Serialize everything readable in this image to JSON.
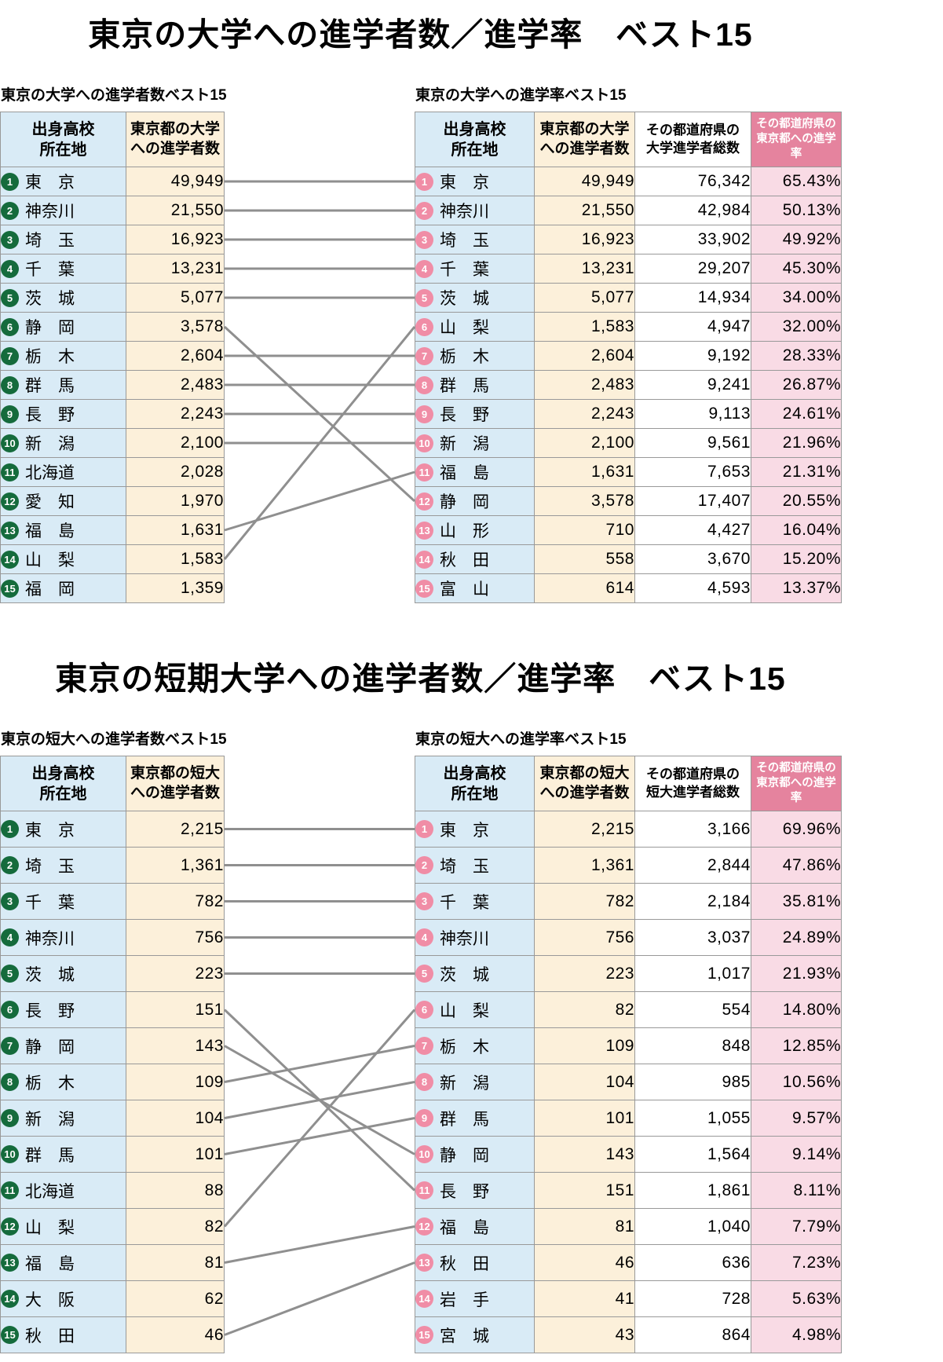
{
  "colors": {
    "pref_bg": "#d9ebf6",
    "count_bg": "#fcf0da",
    "total_bg": "#ffffff",
    "rate_bg": "#f9dbe5",
    "rate_header_bg": "#e5839e",
    "rate_header_text": "#ffffff",
    "badge_green": "#156b3c",
    "badge_pink": "#f08da6",
    "border": "#999999",
    "link_line": "#8f8f8f"
  },
  "chart_data": [
    {
      "type": "table",
      "section_title": "東京の大学への進学者数／進学率　ベスト15",
      "rank_links": [
        [
          1,
          1
        ],
        [
          2,
          2
        ],
        [
          3,
          3
        ],
        [
          4,
          4
        ],
        [
          5,
          5
        ],
        [
          6,
          12
        ],
        [
          7,
          7
        ],
        [
          8,
          8
        ],
        [
          9,
          9
        ],
        [
          10,
          10
        ],
        [
          13,
          11
        ],
        [
          14,
          6
        ]
      ],
      "left_table": {
        "title": "東京の大学への進学者数ベスト15",
        "columns": [
          "出身高校\n所在地",
          "東京都の大学\nへの進学者数"
        ],
        "rows": [
          {
            "rank": "1",
            "pref": "東　京",
            "count": "49,949"
          },
          {
            "rank": "2",
            "pref": "神奈川",
            "count": "21,550"
          },
          {
            "rank": "3",
            "pref": "埼　玉",
            "count": "16,923"
          },
          {
            "rank": "4",
            "pref": "千　葉",
            "count": "13,231"
          },
          {
            "rank": "5",
            "pref": "茨　城",
            "count": "5,077"
          },
          {
            "rank": "6",
            "pref": "静　岡",
            "count": "3,578"
          },
          {
            "rank": "7",
            "pref": "栃　木",
            "count": "2,604"
          },
          {
            "rank": "8",
            "pref": "群　馬",
            "count": "2,483"
          },
          {
            "rank": "9",
            "pref": "長　野",
            "count": "2,243"
          },
          {
            "rank": "10",
            "pref": "新　潟",
            "count": "2,100"
          },
          {
            "rank": "11",
            "pref": "北海道",
            "count": "2,028"
          },
          {
            "rank": "12",
            "pref": "愛　知",
            "count": "1,970"
          },
          {
            "rank": "13",
            "pref": "福　島",
            "count": "1,631"
          },
          {
            "rank": "14",
            "pref": "山　梨",
            "count": "1,583"
          },
          {
            "rank": "15",
            "pref": "福　岡",
            "count": "1,359"
          }
        ]
      },
      "right_table": {
        "title": "東京の大学への進学率ベスト15",
        "columns": [
          "出身高校\n所在地",
          "東京都の大学\nへの進学者数",
          "その都道府県の\n大学進学者総数",
          "その都道府県の\n東京都への進学率"
        ],
        "rows": [
          {
            "rank": "1",
            "pref": "東　京",
            "count": "49,949",
            "total": "76,342",
            "rate": "65.43%"
          },
          {
            "rank": "2",
            "pref": "神奈川",
            "count": "21,550",
            "total": "42,984",
            "rate": "50.13%"
          },
          {
            "rank": "3",
            "pref": "埼　玉",
            "count": "16,923",
            "total": "33,902",
            "rate": "49.92%"
          },
          {
            "rank": "4",
            "pref": "千　葉",
            "count": "13,231",
            "total": "29,207",
            "rate": "45.30%"
          },
          {
            "rank": "5",
            "pref": "茨　城",
            "count": "5,077",
            "total": "14,934",
            "rate": "34.00%"
          },
          {
            "rank": "6",
            "pref": "山　梨",
            "count": "1,583",
            "total": "4,947",
            "rate": "32.00%"
          },
          {
            "rank": "7",
            "pref": "栃　木",
            "count": "2,604",
            "total": "9,192",
            "rate": "28.33%"
          },
          {
            "rank": "8",
            "pref": "群　馬",
            "count": "2,483",
            "total": "9,241",
            "rate": "26.87%"
          },
          {
            "rank": "9",
            "pref": "長　野",
            "count": "2,243",
            "total": "9,113",
            "rate": "24.61%"
          },
          {
            "rank": "10",
            "pref": "新　潟",
            "count": "2,100",
            "total": "9,561",
            "rate": "21.96%"
          },
          {
            "rank": "11",
            "pref": "福　島",
            "count": "1,631",
            "total": "7,653",
            "rate": "21.31%"
          },
          {
            "rank": "12",
            "pref": "静　岡",
            "count": "3,578",
            "total": "17,407",
            "rate": "20.55%"
          },
          {
            "rank": "13",
            "pref": "山　形",
            "count": "710",
            "total": "4,427",
            "rate": "16.04%"
          },
          {
            "rank": "14",
            "pref": "秋　田",
            "count": "558",
            "total": "3,670",
            "rate": "15.20%"
          },
          {
            "rank": "15",
            "pref": "富　山",
            "count": "614",
            "total": "4,593",
            "rate": "13.37%"
          }
        ]
      }
    },
    {
      "type": "table",
      "section_title": "東京の短期大学への進学者数／進学率　ベスト15",
      "rank_links": [
        [
          1,
          1
        ],
        [
          2,
          2
        ],
        [
          3,
          3
        ],
        [
          4,
          4
        ],
        [
          5,
          5
        ],
        [
          6,
          11
        ],
        [
          7,
          10
        ],
        [
          8,
          7
        ],
        [
          9,
          8
        ],
        [
          10,
          9
        ],
        [
          12,
          6
        ],
        [
          13,
          12
        ],
        [
          15,
          13
        ]
      ],
      "left_table": {
        "title": "東京の短大への進学者数ベスト15",
        "columns": [
          "出身高校\n所在地",
          "東京都の短大\nへの進学者数"
        ],
        "rows": [
          {
            "rank": "1",
            "pref": "東　京",
            "count": "2,215"
          },
          {
            "rank": "2",
            "pref": "埼　玉",
            "count": "1,361"
          },
          {
            "rank": "3",
            "pref": "千　葉",
            "count": "782"
          },
          {
            "rank": "4",
            "pref": "神奈川",
            "count": "756"
          },
          {
            "rank": "5",
            "pref": "茨　城",
            "count": "223"
          },
          {
            "rank": "6",
            "pref": "長　野",
            "count": "151"
          },
          {
            "rank": "7",
            "pref": "静　岡",
            "count": "143"
          },
          {
            "rank": "8",
            "pref": "栃　木",
            "count": "109"
          },
          {
            "rank": "9",
            "pref": "新　潟",
            "count": "104"
          },
          {
            "rank": "10",
            "pref": "群　馬",
            "count": "101"
          },
          {
            "rank": "11",
            "pref": "北海道",
            "count": "88"
          },
          {
            "rank": "12",
            "pref": "山　梨",
            "count": "82"
          },
          {
            "rank": "13",
            "pref": "福　島",
            "count": "81"
          },
          {
            "rank": "14",
            "pref": "大　阪",
            "count": "62"
          },
          {
            "rank": "15",
            "pref": "秋　田",
            "count": "46"
          }
        ]
      },
      "right_table": {
        "title": "東京の短大への進学率ベスト15",
        "columns": [
          "出身高校\n所在地",
          "東京都の短大\nへの進学者数",
          "その都道府県の\n短大進学者総数",
          "その都道府県の\n東京都への進学率"
        ],
        "rows": [
          {
            "rank": "1",
            "pref": "東　京",
            "count": "2,215",
            "total": "3,166",
            "rate": "69.96%"
          },
          {
            "rank": "2",
            "pref": "埼　玉",
            "count": "1,361",
            "total": "2,844",
            "rate": "47.86%"
          },
          {
            "rank": "3",
            "pref": "千　葉",
            "count": "782",
            "total": "2,184",
            "rate": "35.81%"
          },
          {
            "rank": "4",
            "pref": "神奈川",
            "count": "756",
            "total": "3,037",
            "rate": "24.89%"
          },
          {
            "rank": "5",
            "pref": "茨　城",
            "count": "223",
            "total": "1,017",
            "rate": "21.93%"
          },
          {
            "rank": "6",
            "pref": "山　梨",
            "count": "82",
            "total": "554",
            "rate": "14.80%"
          },
          {
            "rank": "7",
            "pref": "栃　木",
            "count": "109",
            "total": "848",
            "rate": "12.85%"
          },
          {
            "rank": "8",
            "pref": "新　潟",
            "count": "104",
            "total": "985",
            "rate": "10.56%"
          },
          {
            "rank": "9",
            "pref": "群　馬",
            "count": "101",
            "total": "1,055",
            "rate": "9.57%"
          },
          {
            "rank": "10",
            "pref": "静　岡",
            "count": "143",
            "total": "1,564",
            "rate": "9.14%"
          },
          {
            "rank": "11",
            "pref": "長　野",
            "count": "151",
            "total": "1,861",
            "rate": "8.11%"
          },
          {
            "rank": "12",
            "pref": "福　島",
            "count": "81",
            "total": "1,040",
            "rate": "7.79%"
          },
          {
            "rank": "13",
            "pref": "秋　田",
            "count": "46",
            "total": "636",
            "rate": "7.23%"
          },
          {
            "rank": "14",
            "pref": "岩　手",
            "count": "41",
            "total": "728",
            "rate": "5.63%"
          },
          {
            "rank": "15",
            "pref": "宮　城",
            "count": "43",
            "total": "864",
            "rate": "4.98%"
          }
        ]
      }
    }
  ]
}
